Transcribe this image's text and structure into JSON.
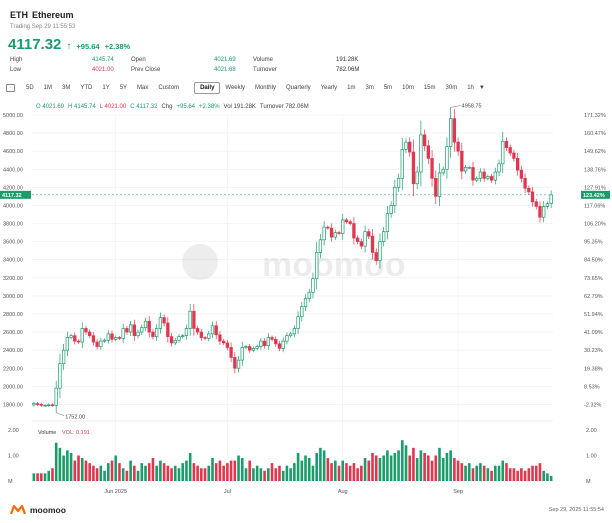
{
  "header": {
    "symbol": "ETH",
    "name": "Ethereum",
    "trading_time": "Trading Sep 29 11:55:53",
    "price": "4117.32",
    "change": "+95.64",
    "change_pct": "+2.38%",
    "stats": [
      {
        "label": "High",
        "value": "4145.74",
        "color": "green"
      },
      {
        "label": "Open",
        "value": "4021.69",
        "color": "green"
      },
      {
        "label": "Volume",
        "value": "191.28K",
        "color": "dark"
      },
      {
        "label": "Low",
        "value": "4021.00",
        "color": "red"
      },
      {
        "label": "Prev Close",
        "value": "4021.68",
        "color": "green"
      },
      {
        "label": "Turnover",
        "value": "782.06M",
        "color": "dark"
      }
    ]
  },
  "timeframes": [
    "5D",
    "1M",
    "3M",
    "YTD",
    "1Y",
    "5Y",
    "Max",
    "Custom"
  ],
  "periods": [
    "Daily",
    "Weekly",
    "Monthly",
    "Quarterly",
    "Yearly",
    "1m",
    "3m",
    "5m",
    "10m",
    "15m",
    "30m",
    "1h"
  ],
  "active_period": "Daily",
  "ohlc_bar": {
    "o": "O 4021.69",
    "h": "H 4145.74",
    "l": "L 4021.00",
    "c": "C 4117.32",
    "chg_label": "Chg",
    "chg": "+95.64",
    "chg_pct": "+2.38%",
    "vol": "Vol 191.28K",
    "turnover": "Turnover 782.06M"
  },
  "watermark": "moomoo",
  "footer": {
    "brand": "moomoo",
    "timestamp": "Sep 29, 2025 11:55:54"
  },
  "colors": {
    "up": "#1a9c6b",
    "down": "#e0364e"
  },
  "chart_data": {
    "type": "candlestick",
    "ylim": [
      1650,
      5000
    ],
    "y_ticks": [
      "5000.00",
      "4800.00",
      "4600.00",
      "4400.00",
      "4200.00",
      "4000.00",
      "3800.00",
      "3600.00",
      "3400.00",
      "3200.00",
      "3000.00",
      "2800.00",
      "2600.00",
      "2400.00",
      "2200.00",
      "2000.00",
      "1800.00"
    ],
    "pct_ticks": [
      {
        "label": "171.32%",
        "v": 5000
      },
      {
        "label": "160.47%",
        "v": 4800
      },
      {
        "label": "149.62%",
        "v": 4600
      },
      {
        "label": "138.76%",
        "v": 4400
      },
      {
        "label": "127.91%",
        "v": 4200
      },
      {
        "label": "117.06%",
        "v": 4000
      },
      {
        "label": "106.20%",
        "v": 3800
      },
      {
        "label": "95.35%",
        "v": 3600
      },
      {
        "label": "84.50%",
        "v": 3400
      },
      {
        "label": "73.65%",
        "v": 3200
      },
      {
        "label": "62.79%",
        "v": 3000
      },
      {
        "label": "51.94%",
        "v": 2800
      },
      {
        "label": "41.09%",
        "v": 2600
      },
      {
        "label": "30.23%",
        "v": 2400
      },
      {
        "label": "19.38%",
        "v": 2200
      },
      {
        "label": "8.53%",
        "v": 2000
      },
      {
        "label": "-2.32%",
        "v": 1800
      }
    ],
    "last_price": "4117.32",
    "last_pct": "123.42%",
    "last_value": 4117.32,
    "max_label": "4958.75",
    "min_label": "1752.00",
    "x_labels": [
      "Jun 2025",
      "Jul",
      "Aug",
      "Sep"
    ],
    "x_label_index": [
      22,
      52,
      83,
      114
    ],
    "volume_label": "Volume",
    "vol_indicator": "VOL: 0.191",
    "vol_ticks": [
      "2.00",
      "1.00",
      "M"
    ],
    "vol_ylim": [
      0,
      2
    ],
    "closes": [
      1810,
      1800,
      1790,
      1790,
      1795,
      1790,
      1980,
      2250,
      2400,
      2540,
      2560,
      2500,
      2490,
      2640,
      2600,
      2560,
      2490,
      2440,
      2500,
      2510,
      2580,
      2520,
      2540,
      2530,
      2640,
      2600,
      2680,
      2560,
      2600,
      2650,
      2720,
      2600,
      2550,
      2640,
      2760,
      2700,
      2550,
      2480,
      2510,
      2550,
      2560,
      2640,
      2830,
      2640,
      2600,
      2540,
      2530,
      2580,
      2670,
      2570,
      2500,
      2480,
      2430,
      2320,
      2200,
      2290,
      2430,
      2440,
      2400,
      2420,
      2440,
      2500,
      2450,
      2540,
      2520,
      2470,
      2420,
      2500,
      2560,
      2580,
      2640,
      2770,
      2880,
      2970,
      3040,
      3190,
      3480,
      3620,
      3760,
      3750,
      3650,
      3700,
      3690,
      3840,
      3820,
      3800,
      3640,
      3600,
      3550,
      3710,
      3660,
      3480,
      3390,
      3600,
      3710,
      3910,
      4000,
      4200,
      4300,
      4620,
      4700,
      4590,
      4240,
      4370,
      4780,
      4660,
      4520,
      4300,
      4100,
      4360,
      4400,
      4650,
      4960,
      4700,
      4600,
      4380,
      4420,
      4420,
      4280,
      4300,
      4370,
      4300,
      4320,
      4280,
      4370,
      4460,
      4710,
      4640,
      4580,
      4520,
      4390,
      4300,
      4190,
      4150,
      4040,
      3990,
      3870,
      3990,
      4020,
      4117
    ],
    "volumes": [
      0.3,
      0.3,
      0.3,
      0.3,
      0.4,
      0.5,
      1.5,
      1.3,
      1.0,
      1.2,
      1.1,
      0.8,
      1.0,
      0.9,
      0.8,
      0.7,
      0.6,
      0.5,
      0.6,
      0.4,
      0.7,
      0.8,
      1.0,
      0.7,
      0.5,
      0.4,
      0.8,
      0.6,
      0.4,
      0.7,
      0.6,
      0.7,
      0.9,
      0.6,
      0.8,
      0.7,
      0.6,
      0.5,
      0.6,
      0.5,
      0.7,
      0.8,
      1.1,
      0.7,
      0.6,
      0.5,
      0.5,
      0.6,
      0.9,
      0.7,
      0.8,
      0.6,
      0.7,
      0.8,
      0.8,
      1.0,
      0.9,
      0.5,
      0.8,
      0.5,
      0.6,
      0.5,
      0.4,
      0.5,
      0.7,
      0.5,
      0.6,
      0.4,
      0.6,
      0.5,
      0.7,
      1.1,
      0.8,
      1.0,
      0.9,
      0.6,
      1.1,
      1.3,
      1.2,
      0.9,
      0.7,
      0.8,
      0.6,
      0.8,
      0.7,
      0.6,
      0.7,
      0.5,
      0.6,
      0.9,
      0.8,
      1.1,
      1.0,
      0.9,
      1.0,
      1.2,
      1.0,
      1.1,
      1.2,
      1.6,
      1.4,
      1.0,
      1.3,
      0.9,
      1.2,
      1.1,
      1.0,
      0.8,
      1.0,
      1.3,
      0.9,
      1.1,
      1.2,
      0.9,
      0.8,
      0.7,
      0.6,
      0.7,
      0.5,
      0.6,
      0.7,
      0.6,
      0.5,
      0.4,
      0.6,
      0.6,
      0.8,
      0.7,
      0.5,
      0.5,
      0.4,
      0.5,
      0.4,
      0.5,
      0.6,
      0.6,
      0.7,
      0.4,
      0.3,
      0.2
    ]
  }
}
